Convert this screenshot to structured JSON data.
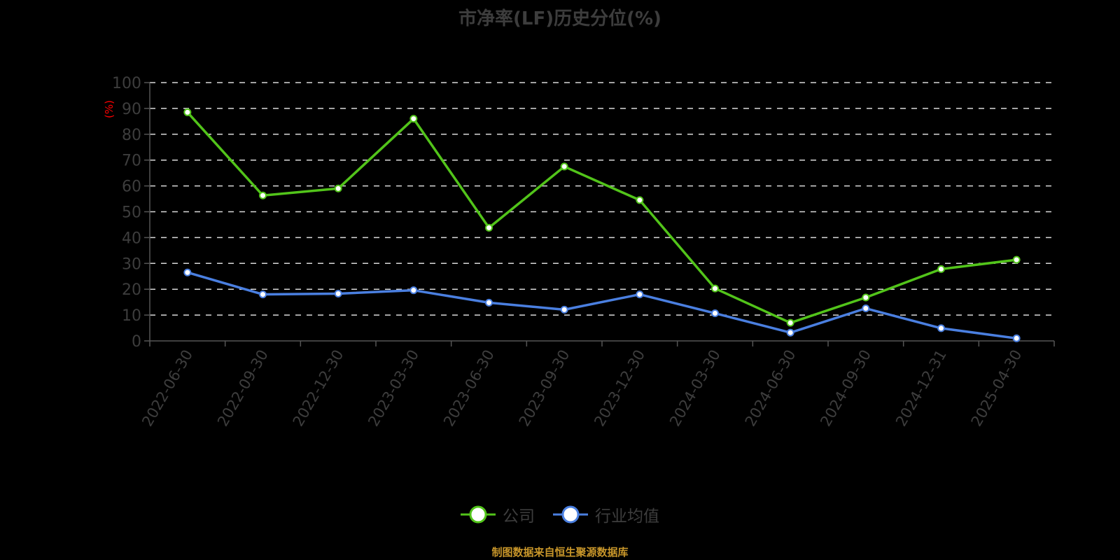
{
  "title": "市净率(LF)历史分位(%)",
  "source_note": "制图数据来自恒生聚源数据库",
  "colors": {
    "background": "#000000",
    "company": "#52c41a",
    "industry": "#4a7fe0",
    "axis_text": "#3d3d3d",
    "grid": "#d9d9d9",
    "unit": "#ff0000",
    "source": "#c8962a"
  },
  "legend": [
    {
      "label": "公司",
      "color": "#52c41a"
    },
    {
      "label": "行业均值",
      "color": "#4a7fe0"
    }
  ],
  "chart_data": {
    "type": "line",
    "title": "市净率(LF)历史分位(%)",
    "xlabel": "",
    "ylabel": "(%)",
    "ylim": [
      0,
      100
    ],
    "yticks": [
      0,
      10,
      20,
      30,
      40,
      50,
      60,
      70,
      80,
      90,
      100
    ],
    "grid": true,
    "legend_position": "bottom",
    "categories": [
      "2022-06-30",
      "2022-09-30",
      "2022-12-30",
      "2023-03-30",
      "2023-06-30",
      "2023-09-30",
      "2023-12-30",
      "2024-03-30",
      "2024-06-30",
      "2024-09-30",
      "2024-12-31",
      "2025-04-30"
    ],
    "series": [
      {
        "name": "公司",
        "values": [
          88.5,
          56.3,
          59.0,
          86.0,
          43.8,
          67.5,
          54.5,
          20.3,
          7.0,
          16.8,
          27.8,
          31.4
        ]
      },
      {
        "name": "行业均值",
        "values": [
          26.5,
          18.0,
          18.3,
          19.6,
          14.8,
          12.1,
          18.0,
          10.7,
          3.2,
          12.6,
          4.9,
          1.0
        ]
      }
    ]
  }
}
